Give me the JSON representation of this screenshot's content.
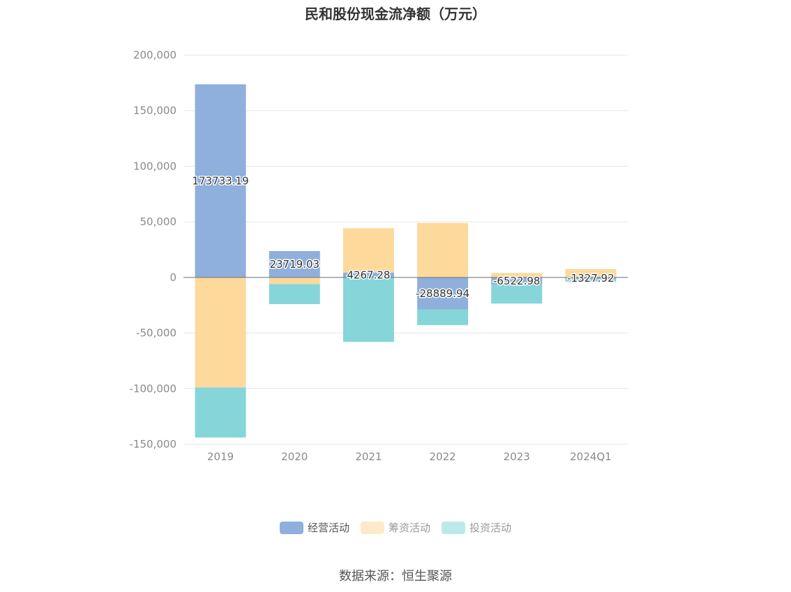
{
  "chart_data": {
    "type": "bar",
    "stacked": true,
    "title": "民和股份现金流净额（万元）",
    "categories": [
      "2019",
      "2020",
      "2021",
      "2022",
      "2023",
      "2024Q1"
    ],
    "series": [
      {
        "name": "经营活动",
        "color": "#8fafdc",
        "values": [
          173733.19,
          23719.03,
          4267.28,
          -28889.94,
          -6522.98,
          -1327.92
        ]
      },
      {
        "name": "筹资活动",
        "color": "#fdd99b",
        "values": [
          -99000,
          -6000,
          40000,
          49000,
          4000,
          7500
        ]
      },
      {
        "name": "投资活动",
        "color": "#86d5d9",
        "values": [
          -45000,
          -18000,
          -58000,
          -14000,
          -17000,
          -2500
        ]
      }
    ],
    "data_labels": [
      "173733.19",
      "23719.03",
      "4267.28",
      "-28889.94",
      "-6522.98",
      "-1327.92"
    ],
    "y_ticks": [
      "200,000",
      "150,000",
      "100,000",
      "50,000",
      "0",
      "-50,000",
      "-100,000",
      "-150,000"
    ],
    "ylim": [
      -150000,
      200000
    ],
    "grid": true,
    "legend_position": "bottom",
    "source": "数据来源：恒生聚源"
  }
}
